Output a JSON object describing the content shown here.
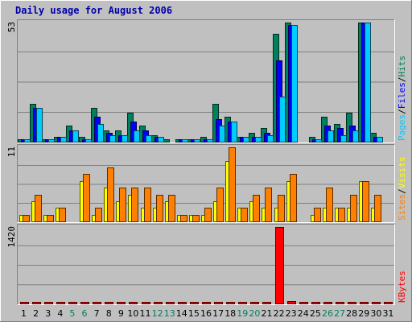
{
  "chart_data": {
    "type": "bar",
    "title": "Daily usage for August 2006",
    "days": [
      "1",
      "2",
      "3",
      "4",
      "5",
      "6",
      "7",
      "8",
      "9",
      "10",
      "11",
      "12",
      "13",
      "14",
      "15",
      "16",
      "17",
      "18",
      "19",
      "20",
      "21",
      "22",
      "23",
      "24",
      "25",
      "26",
      "27",
      "28",
      "29",
      "30",
      "31"
    ],
    "weekend_days": [
      "5",
      "6",
      "12",
      "13",
      "19",
      "20",
      "26",
      "27"
    ],
    "panels": [
      {
        "id": "top",
        "max_label": "53",
        "max": 53,
        "series": [
          {
            "name": "Hits",
            "color": "#00805c",
            "values": [
              1,
              17,
              1,
              2,
              7,
              2,
              15,
              5,
              5,
              13,
              7,
              3,
              1,
              1,
              1,
              2,
              17,
              11,
              2,
              4,
              6,
              48,
              53,
              0,
              2,
              11,
              8,
              13,
              53,
              4,
              0
            ]
          },
          {
            "name": "Files",
            "color": "#0000ff",
            "values": [
              1,
              15,
              1,
              2,
              5,
              1,
              11,
              4,
              3,
              9,
              5,
              2,
              0,
              1,
              1,
              1,
              10,
              9,
              2,
              2,
              4,
              36,
              52,
              0,
              1,
              7,
              6,
              7,
              53,
              2,
              0
            ]
          },
          {
            "name": "Pages",
            "color": "#00ccff",
            "values": [
              1,
              15,
              1,
              2,
              5,
              1,
              8,
              3,
              3,
              5,
              3,
              2,
              0,
              1,
              1,
              1,
              7,
              9,
              2,
              2,
              3,
              20,
              52,
              0,
              1,
              5,
              3,
              5,
              53,
              2,
              0
            ]
          }
        ],
        "labels_right": [
          "Pages",
          "/",
          "Files",
          "/",
          "Hits"
        ],
        "label_colors": [
          "#00ccff",
          "#000000",
          "#0000ff",
          "#000000",
          "#00805c"
        ]
      },
      {
        "id": "middle",
        "max_label": "11",
        "max": 11,
        "series": [
          {
            "name": "Visits",
            "color": "#ffff00",
            "values": [
              1,
              3,
              1,
              2,
              0,
              6,
              1,
              5,
              3,
              4,
              2,
              2,
              3,
              1,
              1,
              1,
              3,
              9,
              2,
              3,
              2,
              2,
              6,
              0,
              1,
              2,
              2,
              2,
              6,
              2,
              0
            ]
          },
          {
            "name": "Sites",
            "color": "#ff8000",
            "values": [
              1,
              4,
              1,
              2,
              0,
              7,
              2,
              8,
              5,
              5,
              5,
              4,
              4,
              1,
              1,
              2,
              5,
              11,
              2,
              4,
              5,
              4,
              7,
              0,
              2,
              5,
              2,
              4,
              6,
              4,
              0
            ]
          }
        ],
        "labels_right": [
          "Sites",
          "/",
          "Visits"
        ],
        "label_colors": [
          "#ff8000",
          "#000000",
          "#ffff00"
        ]
      },
      {
        "id": "bottom",
        "max_label": "1420",
        "max": 1420,
        "series": [
          {
            "name": "KBytes",
            "color": "#ff0000",
            "values": [
              25,
              25,
              3,
              3,
              3,
              3,
              3,
              3,
              3,
              3,
              3,
              3,
              3,
              3,
              3,
              3,
              25,
              3,
              3,
              3,
              3,
              1420,
              40,
              3,
              3,
              3,
              3,
              3,
              30,
              3,
              3
            ]
          }
        ],
        "labels_right": [
          "KBytes"
        ],
        "label_colors": [
          "#ff0000"
        ]
      }
    ]
  }
}
